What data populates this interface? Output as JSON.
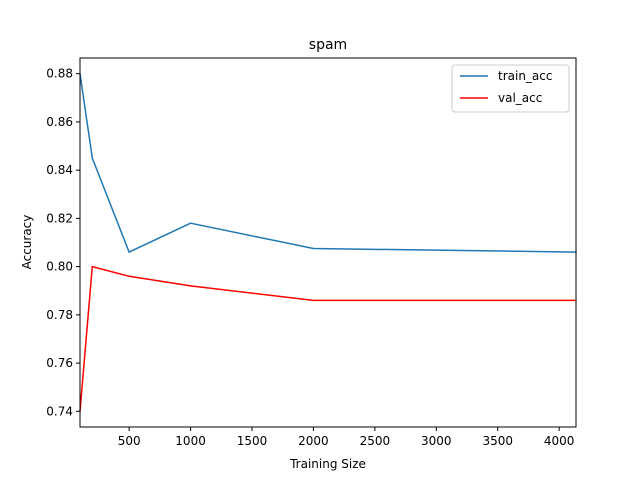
{
  "chart_data": {
    "type": "line",
    "title": "spam",
    "xlabel": "Training Size",
    "ylabel": "Accuracy",
    "xlim": [
      100,
      4137
    ],
    "ylim": [
      0.7335,
      0.8865
    ],
    "xticks": [
      500,
      1000,
      1500,
      2000,
      2500,
      3000,
      3500,
      4000
    ],
    "yticks": [
      0.74,
      0.76,
      0.78,
      0.8,
      0.82,
      0.84,
      0.86,
      0.88
    ],
    "ytick_labels": [
      "0.74",
      "0.76",
      "0.78",
      "0.80",
      "0.82",
      "0.84",
      "0.86",
      "0.88"
    ],
    "grid": false,
    "legend_position": "top-right",
    "series": [
      {
        "name": "train_acc",
        "color": "#1f77b4",
        "x": [
          100,
          200,
          500,
          1000,
          2000,
          4137
        ],
        "y": [
          0.88,
          0.845,
          0.806,
          0.818,
          0.8075,
          0.806
        ]
      },
      {
        "name": "val_acc",
        "color": "#ff0000",
        "x": [
          100,
          200,
          500,
          1000,
          2000,
          4137
        ],
        "y": [
          0.74,
          0.8,
          0.796,
          0.792,
          0.786,
          0.786
        ]
      }
    ]
  }
}
